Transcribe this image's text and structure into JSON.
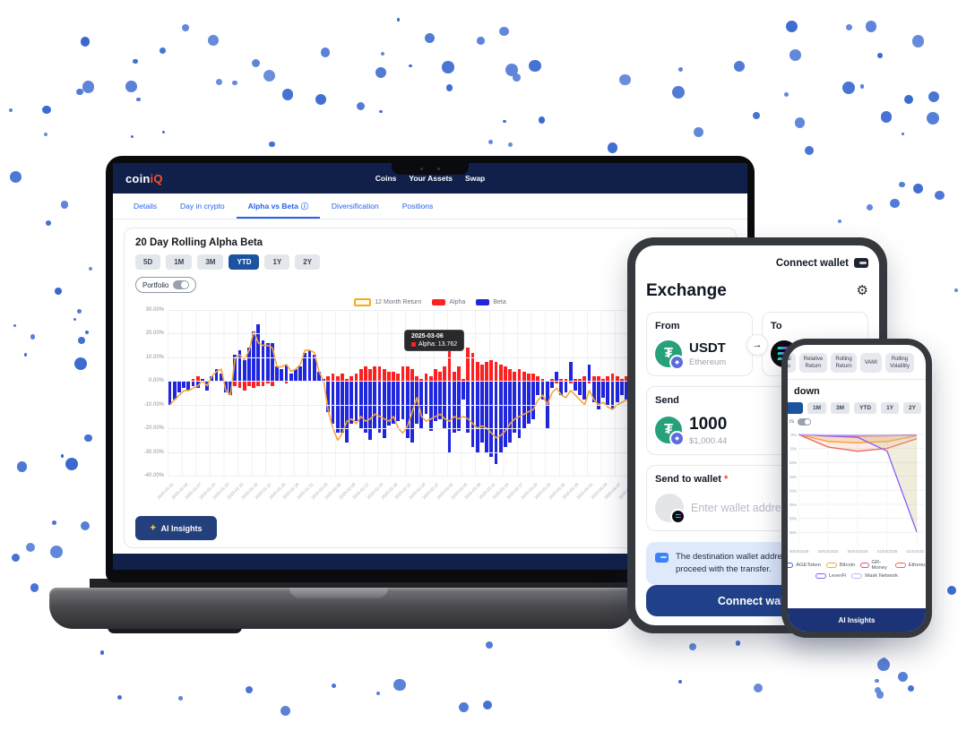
{
  "colors": {
    "navy": "#10204a",
    "accent_blue": "#2563eb",
    "range_active_blue": "#1d529e",
    "alpha_red": "#fe2020",
    "beta_blue": "#2026dd",
    "line_orange": "#f6a53b",
    "logo_orange": "#ff4b26",
    "tether_teal": "#26a17b",
    "alert_bg": "#dfe9fc",
    "alert_icon_blue": "#3b82f6",
    "dot_blue": "#4a79d8",
    "button_navy": "#20418a"
  },
  "icons": {
    "gear": "⚙",
    "arrow_right": "→",
    "info": "ⓘ",
    "sparkle": "✦",
    "tether_symbol": "₮",
    "eth_badge": "◆"
  },
  "laptop": {
    "header": {
      "logo_part1": "coin",
      "logo_part2": "iQ",
      "nav": [
        "Coins",
        "Your Assets",
        "Swap"
      ]
    },
    "tabs": [
      {
        "label": "Details",
        "active": false,
        "info": false
      },
      {
        "label": "Day in crypto",
        "active": false,
        "info": false
      },
      {
        "label": "Alpha vs Beta",
        "active": true,
        "info": true
      },
      {
        "label": "Diversification",
        "active": false,
        "info": false
      },
      {
        "label": "Positions",
        "active": false,
        "info": false
      }
    ],
    "panel": {
      "title": "20 Day Rolling Alpha Beta",
      "ranges": [
        "5D",
        "1M",
        "3M",
        "YTD",
        "1Y",
        "2Y"
      ],
      "active_range": "YTD",
      "portfolio_toggle_label": "Portfolio",
      "ai_insights_label": "AI Insights"
    }
  },
  "chart_data": [
    {
      "type": "bar",
      "context": "laptop-20-day-rolling-alpha-beta",
      "title": "20 Day Rolling Alpha Beta",
      "x_start_date": "2025-01-01",
      "x_step_days": 1,
      "x_label_every": 3,
      "ylim": [
        -40,
        30
      ],
      "grid": true,
      "legend_position": "top",
      "y_ticks": [
        "30.00%",
        "20.00%",
        "10.00%",
        "0.00%",
        "-10.00%",
        "-20.00%",
        "-30.00%",
        "-40.00%"
      ],
      "legend": [
        {
          "name": "12 Month Return",
          "color": "#f6a821",
          "style": "outline"
        },
        {
          "name": "Alpha",
          "color": "#fe2020",
          "style": "solid"
        },
        {
          "name": "Beta",
          "color": "#2026dd",
          "style": "solid"
        }
      ],
      "tooltip": {
        "date": "2025-03-06",
        "text": "Alpha: 13.762",
        "marker_color": "#fe2020",
        "day_index": 64
      },
      "series": [
        {
          "name": "Alpha",
          "type": "bar",
          "color": "#fe2020",
          "values": [
            -1,
            0,
            -1,
            -1,
            0,
            1,
            2,
            1,
            -1,
            1,
            1,
            2,
            -1,
            -1,
            -2,
            -3,
            -4,
            -2,
            -3,
            -2,
            -2,
            -1,
            -2,
            1,
            1,
            -1,
            0,
            1,
            1,
            1,
            0,
            1,
            0,
            1,
            2,
            3,
            2,
            3,
            1,
            2,
            3,
            5,
            6,
            5,
            6,
            6,
            5,
            4,
            4,
            3,
            6,
            6,
            5,
            2,
            1,
            3,
            2,
            5,
            4,
            6,
            13,
            4,
            6,
            1,
            14,
            12,
            8,
            7,
            8,
            9,
            8,
            7,
            6,
            5,
            4,
            5,
            4,
            3,
            3,
            2,
            1,
            -2,
            1,
            -1,
            1,
            1,
            -1,
            1,
            1,
            2,
            -1,
            2,
            2,
            1,
            2,
            3,
            2,
            1,
            2,
            1,
            2,
            2,
            1,
            1,
            1,
            -1,
            -1,
            -1,
            -2,
            -1,
            -2,
            -3,
            -2,
            -2,
            -3,
            -2,
            -2,
            -2,
            -2,
            -3
          ]
        },
        {
          "name": "Beta",
          "type": "bar",
          "color": "#2026dd",
          "values": [
            -10,
            -8,
            -5,
            -3,
            -4,
            -2,
            -3,
            1,
            -4,
            2,
            5,
            3,
            -5,
            -6,
            11,
            13,
            9,
            14,
            21,
            24,
            17,
            16,
            16,
            6,
            5,
            7,
            3,
            5,
            6,
            12,
            13,
            11,
            4,
            1,
            -13,
            -18,
            -22,
            -22,
            -26,
            -18,
            -17,
            -20,
            -22,
            -25,
            -20,
            -22,
            -24,
            -19,
            -18,
            -17,
            -16,
            -24,
            -26,
            -18,
            -20,
            -14,
            -21,
            -17,
            -16,
            -20,
            -30,
            -22,
            -21,
            -8,
            -22,
            -28,
            -30,
            -26,
            -30,
            -32,
            -35,
            -30,
            -28,
            -26,
            -22,
            -24,
            -20,
            -18,
            -16,
            -6,
            -8,
            -20,
            -3,
            4,
            -6,
            -5,
            8,
            -4,
            -6,
            -8,
            7,
            -9,
            -12,
            -7,
            -10,
            -12,
            -9,
            -6,
            -8,
            -5,
            -10,
            -12,
            -8,
            -10,
            -6,
            -4,
            2,
            3,
            14,
            12,
            10,
            16,
            14,
            22,
            25,
            20,
            26,
            30,
            26,
            31
          ]
        },
        {
          "name": "12 Month Return",
          "type": "line",
          "color": "#f6a53b",
          "values": [
            -10,
            -8,
            -6,
            -4,
            -4,
            -3,
            -2,
            0,
            -2,
            2,
            4,
            5,
            -4,
            -6,
            10,
            11,
            9,
            13,
            21,
            16,
            15,
            15,
            14,
            6,
            6,
            7,
            4,
            5,
            7,
            13,
            13,
            12,
            4,
            0,
            -13,
            -20,
            -25,
            -22,
            -17,
            -16,
            -18,
            -15,
            -17,
            -16,
            -14,
            -15,
            -16,
            -17,
            -15,
            -20,
            -22,
            -19,
            -13,
            -7,
            -15,
            -17,
            -16,
            -15,
            -14,
            -16,
            -17,
            -15,
            -16,
            -15,
            -16,
            -18,
            -20,
            -19,
            -20,
            -22,
            -24,
            -23,
            -21,
            -18,
            -16,
            -15,
            -14,
            -13,
            -12,
            -8,
            -6,
            -10,
            -5,
            -3,
            -6,
            -7,
            -4,
            -6,
            -8,
            -10,
            -4,
            -8,
            -10,
            -9,
            -11,
            -12,
            -10,
            -9,
            -8,
            -7,
            -9,
            -10,
            -11,
            -9,
            -8,
            -6,
            -3,
            0,
            8,
            10,
            9,
            12,
            13,
            15,
            20,
            22,
            24,
            28,
            27,
            29
          ]
        }
      ]
    },
    {
      "type": "line",
      "context": "phone-drawdown",
      "x_labels": [
        "28/03/2025",
        "29/03/2025",
        "30/03/2025",
        "31/03/2025",
        "01/04/2025"
      ],
      "ylim": [
        -40,
        2
      ],
      "grid": true,
      "legend_position": "bottom",
      "y_ticks": [
        "0%",
        "-5%",
        "-10%",
        "-15%",
        "-20%",
        "-25%",
        "-30%",
        "-35%"
      ],
      "series": [
        {
          "name": "AGEToken",
          "color": "#4263eb",
          "values": [
            0,
            -0.3,
            -0.4,
            -0.3,
            -0.2
          ]
        },
        {
          "name": "Bitcoin",
          "color": "#f9a825",
          "values": [
            0,
            -2.5,
            -3,
            -2.5,
            -0.5
          ]
        },
        {
          "name": "GR-Money",
          "color": "#e64980",
          "values": [
            0,
            -0.5,
            -0.6,
            -0.5,
            -0.3
          ]
        },
        {
          "name": "Ethereum",
          "color": "#ef6352",
          "values": [
            0,
            -4.5,
            -6,
            -5,
            -1.5
          ]
        },
        {
          "name": "LeverFi",
          "color": "#8b5cf6",
          "values": [
            0,
            -0.6,
            -1,
            -6,
            -35
          ]
        },
        {
          "name": "Mask Network",
          "color": "#c4b5fd",
          "values": [
            0,
            -0.2,
            -0.3,
            -0.4,
            -0.5
          ]
        }
      ],
      "legend_rows": [
        [
          "AGEToken",
          "Bitcoin",
          "GR-Money",
          "Ethereum"
        ],
        [
          "LeverFi",
          "Mask Network"
        ]
      ]
    }
  ],
  "tablet": {
    "connect_wallet_top": "Connect wallet",
    "title": "Exchange",
    "from": {
      "label": "From",
      "coin": "USDT",
      "network": "Ethereum"
    },
    "to": {
      "label": "To"
    },
    "send": {
      "label": "Send",
      "amount": "1000",
      "usd": "$1,000.44"
    },
    "send_to_wallet": {
      "label": "Send to wallet",
      "required_mark": "*",
      "placeholder": "Enter wallet address"
    },
    "alert": {
      "line1": "The destination wallet address is required to",
      "line2": "proceed with the transfer."
    },
    "primary_button": "Connect wallet"
  },
  "phone": {
    "tabs": [
      {
        "line1": "al",
        "line2": "s"
      },
      {
        "line1": "Relative",
        "line2": "Return"
      },
      {
        "line1": "Rolling",
        "line2": "Return"
      },
      {
        "line1": "VAMI",
        "line2": ""
      },
      {
        "line1": "Rolling",
        "line2": "Volatility"
      }
    ],
    "heading_fragment": "down",
    "ranges": [
      "1M",
      "3M",
      "YTD",
      "1Y",
      "2Y"
    ],
    "toggle_fragment": "rs",
    "footer": "AI Insights"
  }
}
